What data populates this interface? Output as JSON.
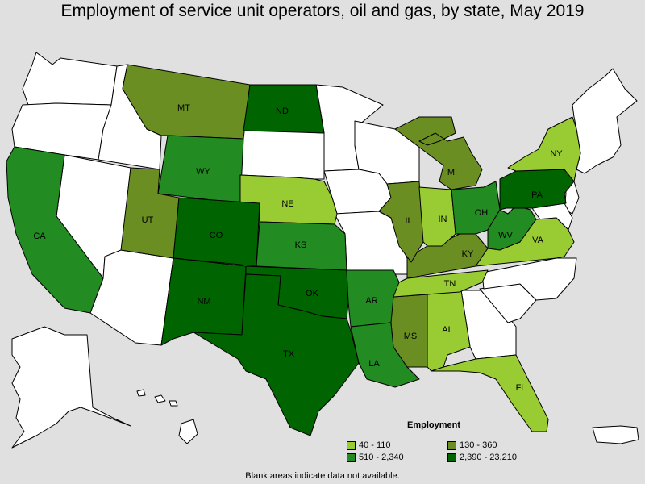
{
  "title": "Employment of service unit operators, oil and gas, by state, May 2019",
  "legend": {
    "title": "Employment",
    "items": [
      {
        "label": "40 - 110",
        "color": "#99cc33"
      },
      {
        "label": "130 - 360",
        "color": "#6b8e23"
      },
      {
        "label": "510 - 2,340",
        "color": "#228b22"
      },
      {
        "label": "2,390 - 23,210",
        "color": "#006400"
      }
    ]
  },
  "footnote": "Blank areas indicate data not available.",
  "colors": {
    "background": "#e0e0e0",
    "no_data": "#ffffff",
    "bin1": "#99cc33",
    "bin2": "#6b8e23",
    "bin3": "#228b22",
    "bin4": "#006400"
  },
  "states": [
    {
      "abbr": "MT",
      "bin": "130 - 360"
    },
    {
      "abbr": "ND",
      "bin": "2,390 - 23,210"
    },
    {
      "abbr": "WY",
      "bin": "510 - 2,340"
    },
    {
      "abbr": "NE",
      "bin": "40 - 110"
    },
    {
      "abbr": "UT",
      "bin": "130 - 360"
    },
    {
      "abbr": "CO",
      "bin": "2,390 - 23,210"
    },
    {
      "abbr": "KS",
      "bin": "510 - 2,340"
    },
    {
      "abbr": "CA",
      "bin": "510 - 2,340"
    },
    {
      "abbr": "NM",
      "bin": "2,390 - 23,210"
    },
    {
      "abbr": "OK",
      "bin": "2,390 - 23,210"
    },
    {
      "abbr": "TX",
      "bin": "2,390 - 23,210"
    },
    {
      "abbr": "AR",
      "bin": "510 - 2,340"
    },
    {
      "abbr": "LA",
      "bin": "510 - 2,340"
    },
    {
      "abbr": "MS",
      "bin": "130 - 360"
    },
    {
      "abbr": "AL",
      "bin": "40 - 110"
    },
    {
      "abbr": "TN",
      "bin": "40 - 110"
    },
    {
      "abbr": "KY",
      "bin": "130 - 360"
    },
    {
      "abbr": "IL",
      "bin": "130 - 360"
    },
    {
      "abbr": "IN",
      "bin": "40 - 110"
    },
    {
      "abbr": "MI",
      "bin": "130 - 360"
    },
    {
      "abbr": "OH",
      "bin": "510 - 2,340"
    },
    {
      "abbr": "WV",
      "bin": "510 - 2,340"
    },
    {
      "abbr": "VA",
      "bin": "40 - 110"
    },
    {
      "abbr": "PA",
      "bin": "2,390 - 23,210"
    },
    {
      "abbr": "NY",
      "bin": "40 - 110"
    },
    {
      "abbr": "FL",
      "bin": "40 - 110"
    }
  ]
}
